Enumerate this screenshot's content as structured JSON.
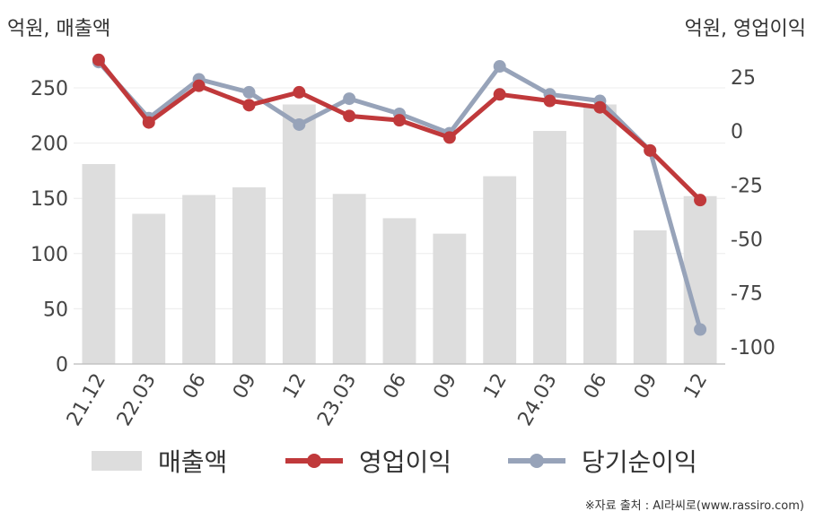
{
  "chart_data": {
    "type": "bar+line",
    "categories": [
      "21.12",
      "22.03",
      "06",
      "09",
      "12",
      "23.03",
      "06",
      "09",
      "12",
      "24.03",
      "06",
      "09",
      "12"
    ],
    "left_axis": {
      "label": "억원, 매출액",
      "range": [
        0,
        250
      ],
      "ticks": [
        0,
        50,
        100,
        150,
        200,
        250
      ]
    },
    "right_axis": {
      "label": "억원, 영업이익",
      "range": [
        -108,
        35
      ],
      "ticks": [
        25,
        0,
        -25,
        -50,
        -75,
        -100
      ]
    },
    "series": [
      {
        "name": "매출액",
        "kind": "bar",
        "axis": "left",
        "color": "#dddddd",
        "values": [
          181,
          136,
          153,
          160,
          235,
          154,
          132,
          118,
          170,
          211,
          235,
          121,
          152
        ]
      },
      {
        "name": "영업이익",
        "kind": "line",
        "axis": "right",
        "color": "#c0393b",
        "values": [
          33,
          4,
          21,
          12,
          18,
          7,
          5,
          -3,
          17,
          14,
          11,
          -9,
          -32
        ]
      },
      {
        "name": "당기순이익",
        "kind": "line",
        "axis": "right",
        "color": "#97a3b9",
        "values": [
          32,
          6,
          24,
          18,
          3,
          15,
          8,
          -1,
          30,
          17,
          14,
          -9,
          -92
        ]
      }
    ],
    "grid": true,
    "legend": "bottom"
  },
  "source": "※자료 출처 : AI라씨로(www.rassiro.com)"
}
